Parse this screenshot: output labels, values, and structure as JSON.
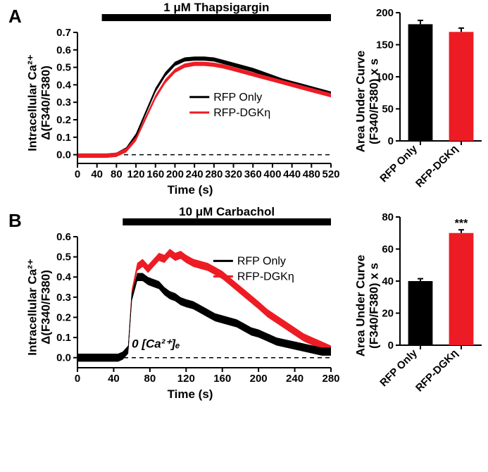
{
  "figure": {
    "background_color": "#ffffff",
    "fonts": {
      "family": "Arial, Helvetica, sans-serif",
      "axis_title_pt": 17,
      "tick_pt": 15,
      "panel_label_pt": 26,
      "legend_pt": 15
    }
  },
  "panelA": {
    "label": "A",
    "line": {
      "type": "line",
      "title_bar": "1 μM Thapsigargin",
      "title_bar_range": [
        50,
        520
      ],
      "title_bar_height": 10,
      "title_bar_color": "#000000",
      "xlabel": "Time (s)",
      "ylabel": "Intracellular Ca²⁺\nΔ(F340/F380)",
      "xlim": [
        0,
        520
      ],
      "xtick_step": 40,
      "ylim": [
        -0.05,
        0.7
      ],
      "yticks": [
        0.0,
        0.1,
        0.2,
        0.3,
        0.4,
        0.5,
        0.6,
        0.7
      ],
      "zero_line": {
        "style": "dashed",
        "color": "#000000",
        "y": 0
      },
      "axis_color": "#000000",
      "axis_width": 2,
      "tick_len": 6,
      "tick_color": "#000000",
      "legend": {
        "x": 230,
        "y": 0.33,
        "items": [
          {
            "label": "RFP Only",
            "color": "#000000"
          },
          {
            "label": "RFP-DGKη",
            "color": "#ed1c24"
          }
        ]
      },
      "band_half": 0.012,
      "series": [
        {
          "name": "RFP Only",
          "color": "#000000",
          "x": [
            0,
            20,
            40,
            60,
            80,
            100,
            120,
            140,
            160,
            180,
            200,
            220,
            240,
            260,
            280,
            300,
            320,
            340,
            360,
            380,
            400,
            420,
            440,
            460,
            480,
            500,
            520
          ],
          "y": [
            -0.005,
            -0.005,
            -0.005,
            -0.005,
            0.0,
            0.03,
            0.11,
            0.24,
            0.37,
            0.46,
            0.52,
            0.545,
            0.55,
            0.55,
            0.545,
            0.53,
            0.515,
            0.5,
            0.485,
            0.465,
            0.445,
            0.425,
            0.41,
            0.395,
            0.38,
            0.365,
            0.35
          ]
        },
        {
          "name": "RFP-DGKη",
          "color": "#ed1c24",
          "x": [
            0,
            20,
            40,
            60,
            80,
            100,
            120,
            140,
            160,
            180,
            200,
            220,
            240,
            260,
            280,
            300,
            320,
            340,
            360,
            380,
            400,
            420,
            440,
            460,
            480,
            500,
            520
          ],
          "y": [
            -0.005,
            -0.005,
            -0.005,
            -0.005,
            0.0,
            0.025,
            0.09,
            0.21,
            0.33,
            0.42,
            0.48,
            0.51,
            0.52,
            0.52,
            0.515,
            0.505,
            0.49,
            0.475,
            0.46,
            0.445,
            0.43,
            0.415,
            0.4,
            0.385,
            0.37,
            0.355,
            0.34
          ]
        }
      ]
    },
    "bar": {
      "type": "bar",
      "ylabel": "Area Under Curve\n(F340/F380) x s",
      "ylim": [
        0,
        200
      ],
      "ytick_step": 50,
      "categories": [
        "RFP Only",
        "RFP-DGKη"
      ],
      "values": [
        182,
        170
      ],
      "errors": [
        6,
        6
      ],
      "colors": [
        "#000000",
        "#ed1c24"
      ],
      "bar_width": 0.6,
      "axis_color": "#000000",
      "axis_width": 2,
      "error_cap": 8,
      "error_width": 2,
      "error_color": "#000000",
      "rotate_xtick_deg": 45
    }
  },
  "panelB": {
    "label": "B",
    "line": {
      "type": "line",
      "title_bar": "10 μM Carbachol",
      "title_bar_range": [
        50,
        280
      ],
      "title_bar_height": 10,
      "title_bar_color": "#000000",
      "xlabel": "Time (s)",
      "ylabel": "Intracellular Ca²⁺\nΔ(F340/F380)",
      "xlim": [
        0,
        280
      ],
      "xtick_step": 40,
      "ylim": [
        -0.05,
        0.6
      ],
      "yticks": [
        0.0,
        0.1,
        0.2,
        0.3,
        0.4,
        0.5,
        0.6
      ],
      "zero_line": {
        "style": "dashed",
        "color": "#000000",
        "y": 0
      },
      "axis_color": "#000000",
      "axis_width": 2,
      "tick_len": 6,
      "tick_color": "#000000",
      "annotation": {
        "text": "0 [Ca²⁺]ₑ",
        "x": 60,
        "y": 0.05,
        "style": "italic",
        "weight": "bold",
        "fontsize": 17
      },
      "legend": {
        "x": 150,
        "y": 0.48,
        "items": [
          {
            "label": "RFP Only",
            "color": "#000000"
          },
          {
            "label": "RFP-DGKη",
            "color": "#ed1c24"
          }
        ]
      },
      "band_half": 0.02,
      "series": [
        {
          "name": "RFP-DGKη",
          "color": "#ed1c24",
          "x": [
            0,
            20,
            40,
            45,
            50,
            56,
            60,
            66,
            72,
            78,
            84,
            90,
            96,
            102,
            108,
            114,
            120,
            128,
            136,
            144,
            152,
            160,
            168,
            176,
            184,
            192,
            200,
            210,
            220,
            230,
            240,
            250,
            260,
            270,
            280
          ],
          "y": [
            0,
            0,
            0,
            0,
            0.01,
            0.04,
            0.32,
            0.45,
            0.47,
            0.44,
            0.47,
            0.5,
            0.49,
            0.52,
            0.5,
            0.51,
            0.49,
            0.47,
            0.46,
            0.45,
            0.43,
            0.41,
            0.38,
            0.35,
            0.32,
            0.29,
            0.26,
            0.22,
            0.19,
            0.16,
            0.13,
            0.1,
            0.08,
            0.06,
            0.04
          ]
        },
        {
          "name": "RFP Only",
          "color": "#000000",
          "x": [
            0,
            20,
            40,
            45,
            50,
            56,
            60,
            66,
            72,
            78,
            84,
            90,
            96,
            102,
            108,
            114,
            120,
            128,
            136,
            144,
            152,
            160,
            168,
            176,
            184,
            192,
            200,
            210,
            220,
            230,
            240,
            250,
            260,
            270,
            280
          ],
          "y": [
            0,
            0,
            0,
            0,
            0.01,
            0.04,
            0.3,
            0.4,
            0.4,
            0.38,
            0.37,
            0.36,
            0.33,
            0.31,
            0.3,
            0.28,
            0.27,
            0.26,
            0.24,
            0.22,
            0.2,
            0.19,
            0.18,
            0.17,
            0.15,
            0.13,
            0.12,
            0.1,
            0.08,
            0.07,
            0.06,
            0.05,
            0.04,
            0.03,
            0.03
          ]
        }
      ]
    },
    "bar": {
      "type": "bar",
      "ylabel": "Area Under Curve\n(F340/F380) x s",
      "ylim": [
        0,
        80
      ],
      "ytick_step": 20,
      "categories": [
        "RFP Only",
        "RFP-DGKη"
      ],
      "values": [
        40,
        70
      ],
      "errors": [
        1.5,
        2
      ],
      "colors": [
        "#000000",
        "#ed1c24"
      ],
      "sig": {
        "index": 1,
        "label": "***"
      },
      "bar_width": 0.6,
      "axis_color": "#000000",
      "axis_width": 2,
      "error_cap": 8,
      "error_width": 2,
      "error_color": "#000000",
      "rotate_xtick_deg": 45
    }
  }
}
